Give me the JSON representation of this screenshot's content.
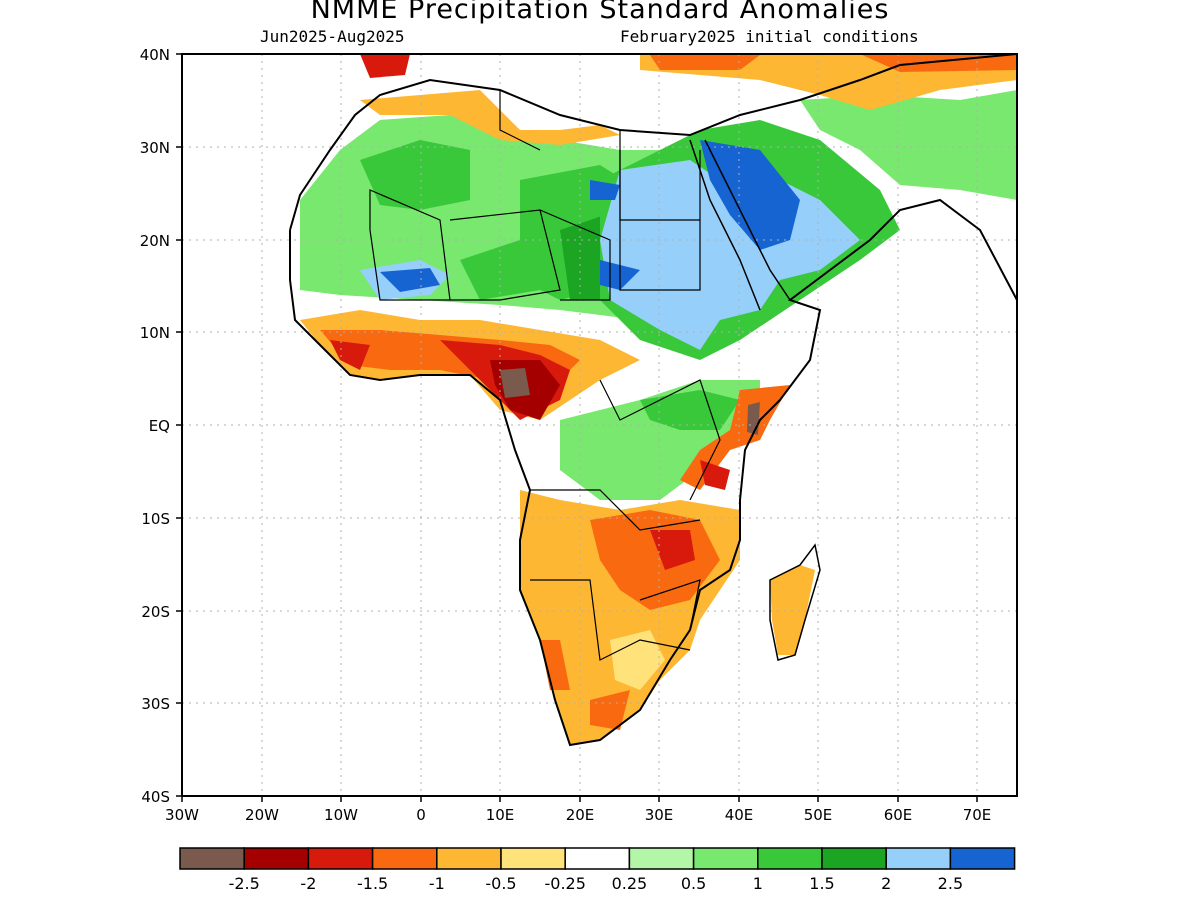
{
  "title": "NMME Precipitation Standard Anomalies",
  "period": "Jun2025-Aug2025",
  "initial_conditions": "February2025 initial conditions",
  "lat_labels": [
    "40N",
    "30N",
    "20N",
    "10N",
    "EQ",
    "10S",
    "20S",
    "30S",
    "40S"
  ],
  "lon_labels": [
    "30W",
    "20W",
    "10W",
    "0",
    "10E",
    "20E",
    "30E",
    "40E",
    "50E",
    "60E",
    "70E"
  ],
  "colorbar": {
    "colors": [
      "#7b5a4e",
      "#a50000",
      "#d81a0d",
      "#f96a10",
      "#fdb733",
      "#ffe27a",
      "#ffffff",
      "#b4f6a8",
      "#78e86f",
      "#39c83a",
      "#1ba523",
      "#96cffa",
      "#1564d2"
    ],
    "labels": [
      "-2.5",
      "-2",
      "-1.5",
      "-1",
      "-0.5",
      "-0.25",
      "0.25",
      "0.5",
      "1",
      "1.5",
      "2",
      "2.5"
    ]
  },
  "regions": [
    {
      "name": "sahara-sahel-wet",
      "color": "#39c83a"
    },
    {
      "name": "arabia-sudan-very-wet",
      "color": "#96cffa"
    },
    {
      "name": "west-central-africa-dry",
      "color": "#d81a0d"
    },
    {
      "name": "southern-africa-dry",
      "color": "#fdb733"
    }
  ]
}
